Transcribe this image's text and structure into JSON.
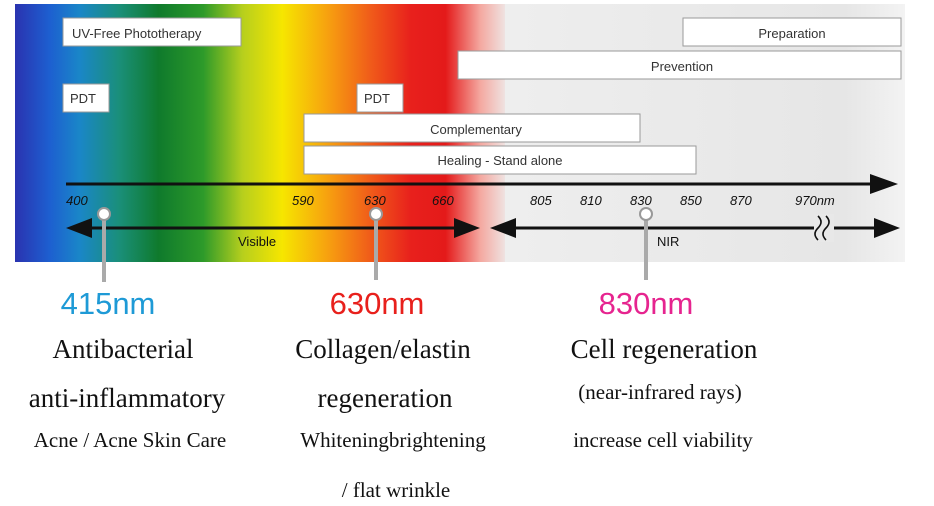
{
  "boxes": {
    "uv_free": "UV-Free Phototherapy",
    "pdt_left": "PDT",
    "pdt_mid": "PDT",
    "preparation": "Preparation",
    "prevention": "Prevention",
    "complementary": "Complementary",
    "healing": "Healing - Stand alone"
  },
  "axis": {
    "ticks": [
      "400",
      "590",
      "630",
      "660",
      "805",
      "810",
      "830",
      "850",
      "870",
      "970nm"
    ],
    "visible_label": "Visible",
    "nir_label": "NIR"
  },
  "callouts": [
    {
      "wavelength": "415nm",
      "color": "#1e9ad6",
      "lines": [
        "Antibacterial",
        "anti-inflammatory",
        "Acne / Acne Skin Care"
      ]
    },
    {
      "wavelength": "630nm",
      "color": "#e8201c",
      "lines": [
        "Collagen/elastin",
        "regeneration",
        "Whiteningbrightening",
        "/ flat wrinkle"
      ]
    },
    {
      "wavelength": "830nm",
      "color": "#e6248f",
      "lines": [
        "Cell regeneration",
        "(near-infrared rays)",
        "increase cell viability"
      ]
    }
  ],
  "colors": {
    "violet_blue": "#1b3fb8",
    "green": "#1d8a3a",
    "yellow": "#f4e400",
    "red": "#e8201c",
    "nir_gray": "#ececec"
  }
}
